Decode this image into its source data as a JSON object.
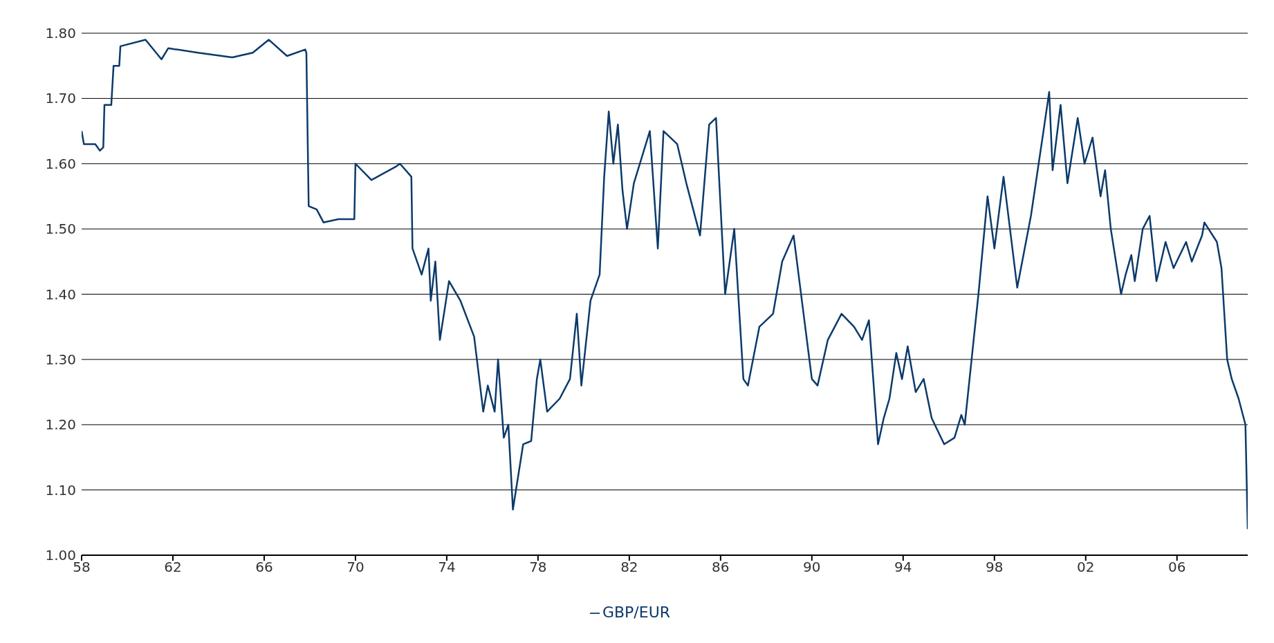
{
  "chart_data": {
    "type": "line",
    "x": [
      1958.0,
      1958.1,
      1958.6,
      1958.8,
      1958.95,
      1959.0,
      1959.3,
      1959.4,
      1959.65,
      1959.7,
      1960.8,
      1961.5,
      1961.8,
      1963.1,
      1964.6,
      1965.5,
      1966.2,
      1967.0,
      1967.8,
      1967.85,
      1967.95,
      1968.3,
      1968.6,
      1969.25,
      1969.95,
      1970.0,
      1970.7,
      1971.75,
      1971.95,
      1972.45,
      1972.5,
      1972.9,
      1973.2,
      1973.3,
      1973.5,
      1973.7,
      1974.1,
      1974.6,
      1975.2,
      1975.6,
      1975.8,
      1976.1,
      1976.25,
      1976.5,
      1976.7,
      1976.9,
      1977.35,
      1977.7,
      1977.95,
      1978.1,
      1978.4,
      1978.95,
      1979.4,
      1979.7,
      1979.9,
      1980.3,
      1980.7,
      1980.9,
      1981.1,
      1981.3,
      1981.5,
      1981.7,
      1981.9,
      1982.2,
      1982.9,
      1983.25,
      1983.5,
      1984.1,
      1984.5,
      1985.1,
      1985.5,
      1985.8,
      1986.05,
      1986.2,
      1986.6,
      1987.0,
      1987.2,
      1987.7,
      1988.3,
      1988.7,
      1989.2,
      1989.6,
      1990.0,
      1990.25,
      1990.7,
      1991.3,
      1991.85,
      1992.2,
      1992.5,
      1992.9,
      1993.15,
      1993.4,
      1993.7,
      1993.95,
      1994.2,
      1994.55,
      1994.9,
      1995.25,
      1995.8,
      1996.25,
      1996.55,
      1996.7,
      1997.3,
      1997.7,
      1998.0,
      1998.4,
      1999.0,
      1999.6,
      2000.15,
      2000.4,
      2000.55,
      2000.9,
      2001.2,
      2001.65,
      2001.95,
      2002.3,
      2002.65,
      2002.85,
      2003.1,
      2003.55,
      2003.75,
      2004.0,
      2004.15,
      2004.5,
      2004.8,
      2005.1,
      2005.5,
      2005.85,
      2006.4,
      2006.65,
      2007.1,
      2007.2,
      2007.75,
      2007.95,
      2008.2,
      2008.4,
      2008.7,
      2009.0,
      2009.1
    ],
    "series": [
      {
        "name": "GBP/EUR",
        "color": "#0b3a6b",
        "values": [
          1.65,
          1.63,
          1.63,
          1.62,
          1.625,
          1.69,
          1.69,
          1.75,
          1.75,
          1.78,
          1.79,
          1.76,
          1.777,
          1.77,
          1.763,
          1.77,
          1.79,
          1.765,
          1.775,
          1.77,
          1.535,
          1.53,
          1.51,
          1.515,
          1.515,
          1.6,
          1.575,
          1.595,
          1.6,
          1.58,
          1.47,
          1.43,
          1.47,
          1.39,
          1.45,
          1.33,
          1.42,
          1.39,
          1.335,
          1.22,
          1.26,
          1.22,
          1.3,
          1.18,
          1.2,
          1.07,
          1.17,
          1.175,
          1.27,
          1.3,
          1.22,
          1.24,
          1.27,
          1.37,
          1.26,
          1.39,
          1.43,
          1.58,
          1.68,
          1.6,
          1.66,
          1.56,
          1.5,
          1.57,
          1.65,
          1.47,
          1.65,
          1.63,
          1.57,
          1.49,
          1.66,
          1.67,
          1.5,
          1.4,
          1.5,
          1.27,
          1.26,
          1.35,
          1.37,
          1.45,
          1.49,
          1.38,
          1.27,
          1.26,
          1.33,
          1.37,
          1.35,
          1.33,
          1.36,
          1.17,
          1.21,
          1.24,
          1.31,
          1.27,
          1.32,
          1.25,
          1.27,
          1.21,
          1.17,
          1.18,
          1.215,
          1.2,
          1.4,
          1.55,
          1.47,
          1.58,
          1.41,
          1.52,
          1.65,
          1.71,
          1.59,
          1.69,
          1.57,
          1.67,
          1.6,
          1.64,
          1.55,
          1.59,
          1.5,
          1.4,
          1.43,
          1.46,
          1.42,
          1.5,
          1.52,
          1.42,
          1.48,
          1.44,
          1.48,
          1.45,
          1.49,
          1.51,
          1.48,
          1.44,
          1.3,
          1.27,
          1.24,
          1.2,
          1.04
        ]
      }
    ],
    "xlim": [
      1958,
      2009.1
    ],
    "xticks": [
      {
        "value": 1958,
        "label": "58"
      },
      {
        "value": 1962,
        "label": "62"
      },
      {
        "value": 1966,
        "label": "66"
      },
      {
        "value": 1970,
        "label": "70"
      },
      {
        "value": 1974,
        "label": "74"
      },
      {
        "value": 1978,
        "label": "78"
      },
      {
        "value": 1982,
        "label": "82"
      },
      {
        "value": 1986,
        "label": "86"
      },
      {
        "value": 1990,
        "label": "90"
      },
      {
        "value": 1994,
        "label": "94"
      },
      {
        "value": 1998,
        "label": "98"
      },
      {
        "value": 2002,
        "label": "02"
      },
      {
        "value": 2006,
        "label": "06"
      }
    ],
    "ylim": [
      1.0,
      1.8
    ],
    "yticks": [
      {
        "value": 1.0,
        "label": "1.00"
      },
      {
        "value": 1.1,
        "label": "1.10"
      },
      {
        "value": 1.2,
        "label": "1.20"
      },
      {
        "value": 1.3,
        "label": "1.30"
      },
      {
        "value": 1.4,
        "label": "1.40"
      },
      {
        "value": 1.5,
        "label": "1.50"
      },
      {
        "value": 1.6,
        "label": "1.60"
      },
      {
        "value": 1.7,
        "label": "1.70"
      },
      {
        "value": 1.8,
        "label": "1.80"
      }
    ],
    "grid": "y",
    "legend": "bottom",
    "marker": "none",
    "line_style": "solid"
  }
}
